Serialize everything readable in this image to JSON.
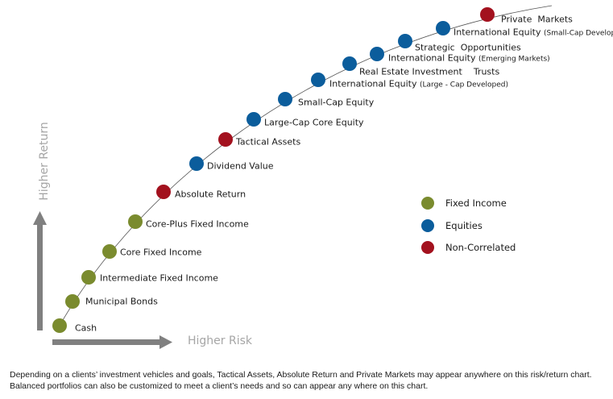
{
  "axes": {
    "y_label": "Higher Return",
    "x_label": "Higher Risk"
  },
  "colors": {
    "fixed_income": "#7a8b2e",
    "equities": "#0b5d9c",
    "non_correlated": "#a3111e",
    "axis_arrow": "#808080",
    "curve": "#555555"
  },
  "points": [
    {
      "label": "Cash",
      "category": "fixed_income"
    },
    {
      "label": "Municipal Bonds",
      "category": "fixed_income"
    },
    {
      "label": "Intermediate Fixed Income",
      "category": "fixed_income"
    },
    {
      "label": "Core Fixed Income",
      "category": "fixed_income"
    },
    {
      "label": "Core-Plus Fixed Income",
      "category": "fixed_income"
    },
    {
      "label": "Absolute Return",
      "category": "non_correlated"
    },
    {
      "label": "Dividend Value",
      "category": "equities"
    },
    {
      "label": "Tactical Assets",
      "category": "non_correlated"
    },
    {
      "label": "Large-Cap Core Equity",
      "category": "equities"
    },
    {
      "label": "Small-Cap Equity",
      "category": "equities"
    },
    {
      "label": "International Equity",
      "sub": "(Large - Cap Developed)",
      "category": "equities"
    },
    {
      "label": "Real Estate Investment    Trusts",
      "category": "equities"
    },
    {
      "label": "International Equity",
      "sub": "(Emerging Markets)",
      "category": "equities"
    },
    {
      "label": "Strategic  Opportunities",
      "category": "equities"
    },
    {
      "label": "International Equity",
      "sub": "(Small-Cap Developed)",
      "category": "equities"
    },
    {
      "label": "Private  Markets",
      "category": "non_correlated"
    }
  ],
  "legend": [
    {
      "label": "Fixed Income",
      "category": "fixed_income"
    },
    {
      "label": "Equities",
      "category": "equities"
    },
    {
      "label": "Non-Correlated",
      "category": "non_correlated"
    }
  ],
  "footnote": {
    "line1": "Depending on a clients’ investment vehicles and goals, Tactical Assets, Absolute Return and Private Markets may appear anywhere on this risk/return chart.",
    "line2": "Balanced portfolios can also be customized to meet a client’s needs and so can appear any where on this chart."
  }
}
